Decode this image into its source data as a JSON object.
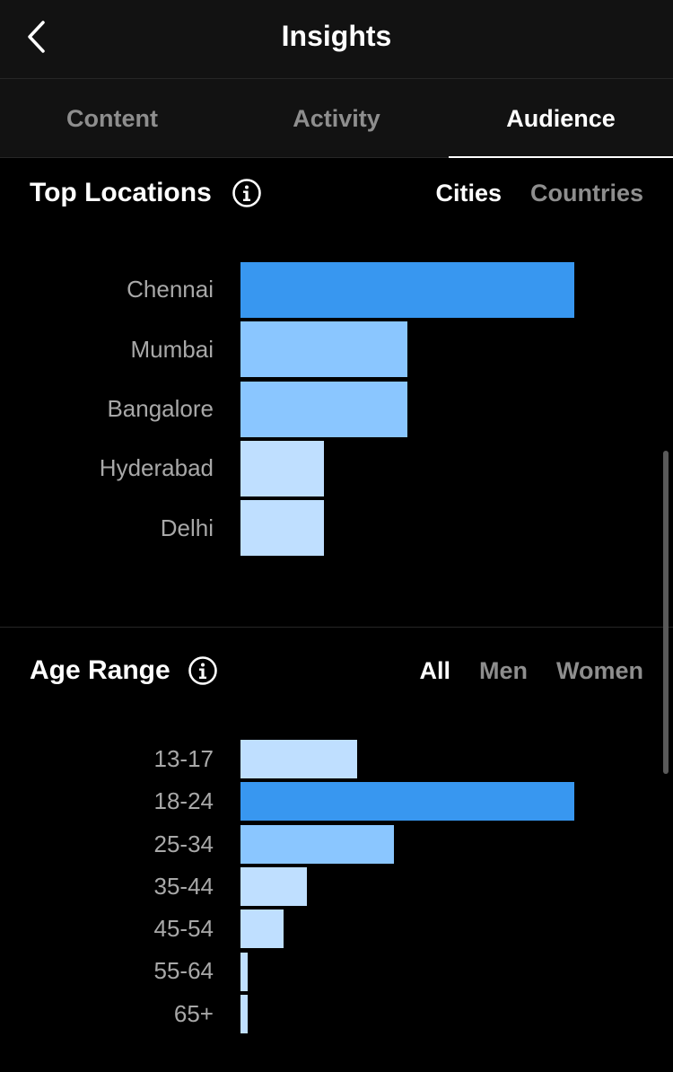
{
  "header": {
    "title": "Insights",
    "back_icon": "chevron-left-icon"
  },
  "tabs": [
    {
      "label": "Content",
      "active": false
    },
    {
      "label": "Activity",
      "active": false
    },
    {
      "label": "Audience",
      "active": true
    }
  ],
  "colors": {
    "bar_max": "#3897f0",
    "bar_mid": "#8ac6ff",
    "bar_low": "#bfdfff"
  },
  "top_locations": {
    "title": "Top Locations",
    "info_icon": "info-icon",
    "filters": [
      {
        "label": "Cities",
        "active": true
      },
      {
        "label": "Countries",
        "active": false
      }
    ],
    "chart_data": {
      "type": "bar",
      "orientation": "horizontal",
      "categories": [
        "Chennai",
        "Mumbai",
        "Bangalore",
        "Hyderabad",
        "Delhi"
      ],
      "values": [
        4,
        2,
        2,
        1,
        1
      ],
      "xlim": [
        0,
        4
      ]
    }
  },
  "age_range": {
    "title": "Age Range",
    "info_icon": "info-icon",
    "filters": [
      {
        "label": "All",
        "active": true
      },
      {
        "label": "Men",
        "active": false
      },
      {
        "label": "Women",
        "active": false
      }
    ],
    "chart_data": {
      "type": "bar",
      "orientation": "horizontal",
      "categories": [
        "13-17",
        "18-24",
        "25-34",
        "35-44",
        "45-54",
        "55-64",
        "65+"
      ],
      "values": [
        35,
        100,
        46,
        20,
        13,
        2,
        2
      ],
      "unit": "relative",
      "xlim": [
        0,
        100
      ]
    }
  }
}
